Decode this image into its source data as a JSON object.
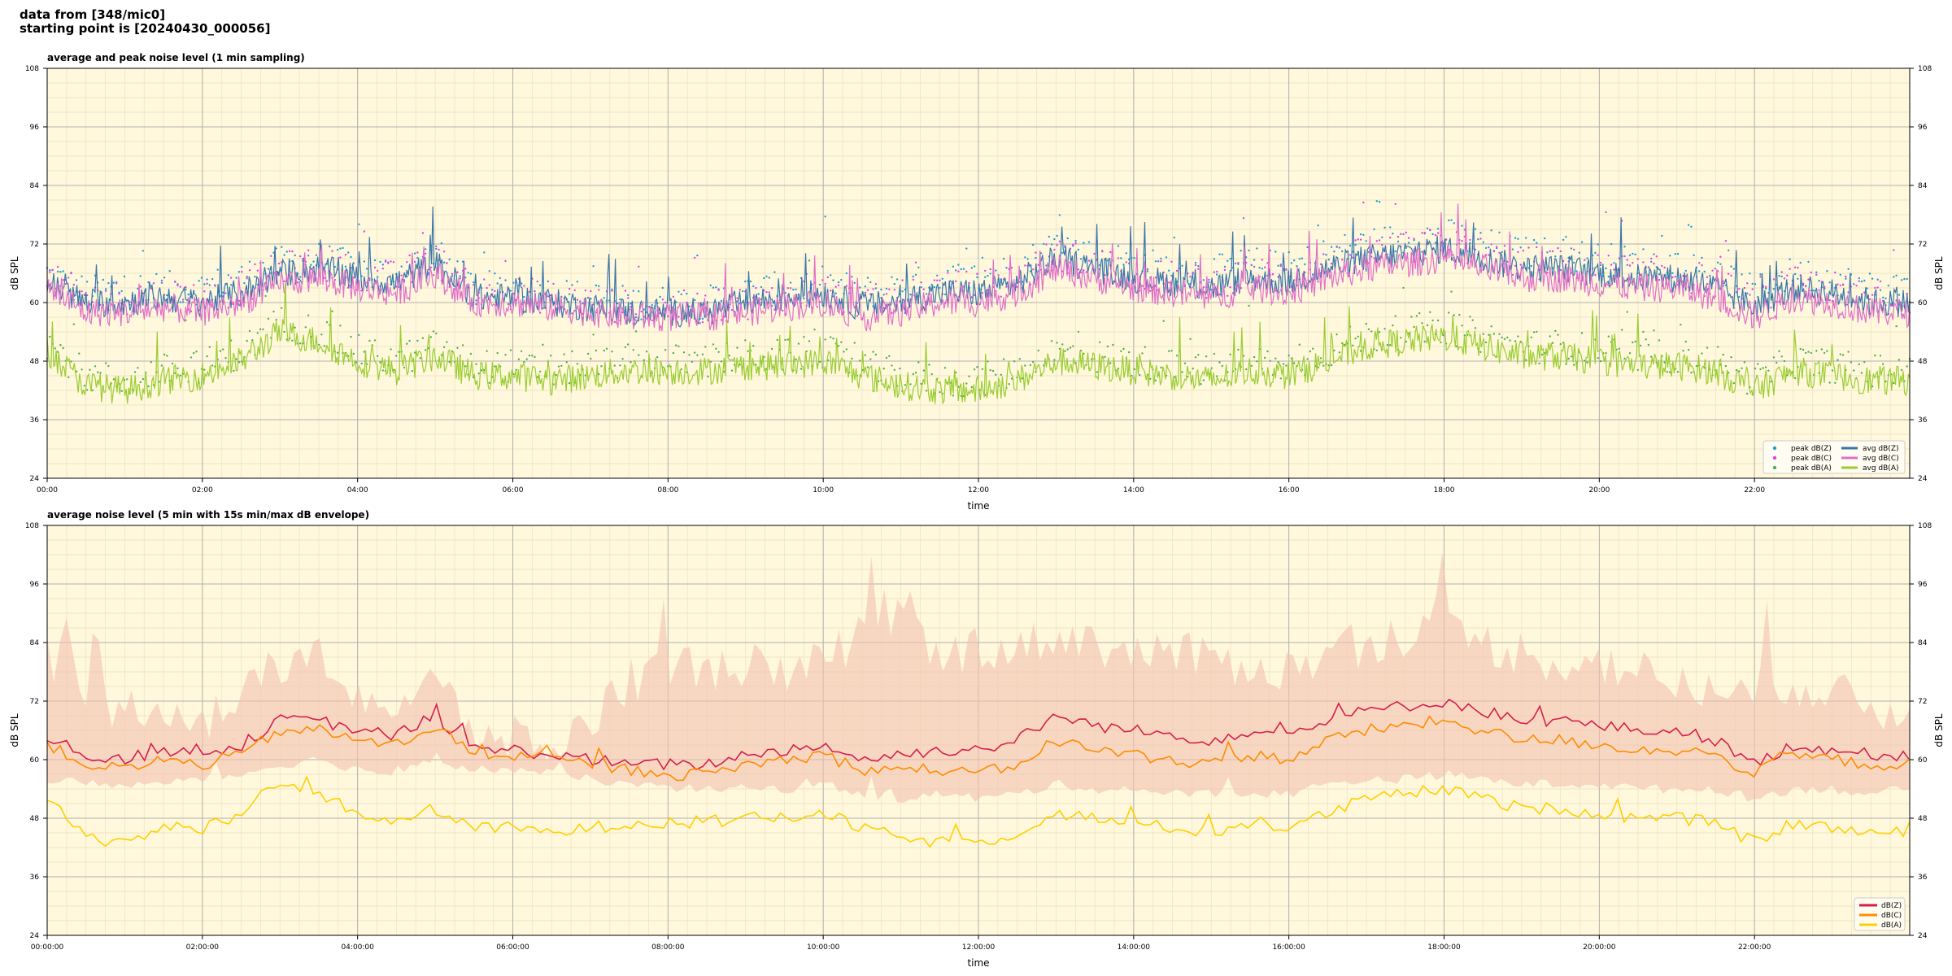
{
  "header": {
    "line1": "data from [348/mic0]",
    "line2": "starting point is [20240430_000056]"
  },
  "chart_data": [
    {
      "type": "scatter+line",
      "title": "average and peak noise level (1 min sampling)",
      "xlabel": "time",
      "ylabel": "dB SPL",
      "ylim": [
        24,
        108
      ],
      "xlim_hours": [
        0,
        24
      ],
      "xticks": [
        "00:00",
        "02:00",
        "04:00",
        "06:00",
        "08:00",
        "10:00",
        "12:00",
        "14:00",
        "16:00",
        "18:00",
        "20:00",
        "22:00"
      ],
      "yticks": [
        24,
        36,
        48,
        60,
        72,
        84,
        96,
        108
      ],
      "grid": true,
      "legend_position": "bottom-right",
      "legend_columns": 2,
      "series_keypoints_x_hours": [
        0,
        0.5,
        1,
        1.5,
        2,
        2.5,
        3,
        3.5,
        4,
        4.5,
        5,
        5.5,
        6,
        6.5,
        7,
        7.5,
        8,
        8.5,
        9,
        9.5,
        10,
        10.5,
        11,
        11.5,
        12,
        12.5,
        13,
        13.5,
        14,
        14.5,
        15,
        15.5,
        16,
        16.5,
        17,
        17.5,
        18,
        18.5,
        19,
        19.5,
        20,
        20.5,
        21,
        21.5,
        22,
        22.5,
        23,
        23.5,
        24
      ],
      "series": [
        {
          "name": "peak dB(Z)",
          "kind": "points",
          "color": "#1f9bd6",
          "values": [
            66,
            62,
            63,
            63,
            63,
            65,
            68,
            69,
            67,
            66,
            70,
            63,
            63,
            62,
            61,
            60,
            60,
            60,
            62,
            63,
            64,
            62,
            63,
            65,
            65,
            67,
            72,
            70,
            68,
            67,
            66,
            68,
            67,
            70,
            72,
            73,
            74,
            72,
            70,
            70,
            69,
            68,
            68,
            66,
            62,
            66,
            65,
            63,
            63
          ]
        },
        {
          "name": "peak dB(C)",
          "kind": "points",
          "color": "#e83ce8",
          "values": [
            65,
            61,
            61,
            62,
            61,
            63,
            67,
            68,
            66,
            65,
            69,
            62,
            62,
            61,
            60,
            59,
            59,
            59,
            60,
            61,
            62,
            60,
            61,
            63,
            63,
            65,
            70,
            68,
            66,
            65,
            64,
            66,
            65,
            68,
            70,
            71,
            72,
            70,
            68,
            68,
            67,
            66,
            66,
            64,
            60,
            64,
            63,
            61,
            61
          ]
        },
        {
          "name": "peak dB(A)",
          "kind": "points",
          "color": "#4caf50",
          "values": [
            52,
            45,
            44,
            46,
            47,
            50,
            56,
            54,
            50,
            48,
            51,
            47,
            47,
            46,
            47,
            48,
            48,
            48,
            49,
            49,
            50,
            47,
            45,
            44,
            44,
            46,
            50,
            49,
            48,
            47,
            46,
            48,
            47,
            50,
            53,
            54,
            55,
            53,
            51,
            51,
            50,
            49,
            49,
            48,
            44,
            48,
            47,
            46,
            46
          ]
        },
        {
          "name": "avg dB(Z)",
          "kind": "line",
          "color": "#3a75a8",
          "values": [
            64,
            60,
            60,
            61,
            60,
            62,
            66,
            67,
            65,
            64,
            68,
            61,
            61,
            60,
            59,
            58,
            58,
            58,
            60,
            61,
            62,
            59,
            60,
            62,
            62,
            64,
            69,
            67,
            65,
            64,
            63,
            65,
            64,
            67,
            69,
            70,
            71,
            69,
            67,
            67,
            66,
            65,
            65,
            63,
            59,
            63,
            62,
            60,
            60
          ]
        },
        {
          "name": "avg dB(C)",
          "kind": "line",
          "color": "#e070c8",
          "values": [
            63,
            58,
            58,
            59,
            58,
            60,
            64,
            65,
            63,
            62,
            66,
            60,
            60,
            59,
            58,
            57,
            57,
            57,
            58,
            59,
            60,
            57,
            58,
            60,
            60,
            62,
            67,
            65,
            63,
            62,
            61,
            63,
            62,
            65,
            67,
            68,
            69,
            67,
            65,
            65,
            64,
            63,
            63,
            61,
            57,
            61,
            60,
            58,
            58
          ]
        },
        {
          "name": "avg dB(A)",
          "kind": "line",
          "color": "#9acd32",
          "values": [
            50,
            43,
            42,
            44,
            45,
            48,
            54,
            52,
            48,
            46,
            49,
            45,
            45,
            44,
            45,
            46,
            46,
            46,
            47,
            47,
            48,
            45,
            43,
            42,
            42,
            44,
            48,
            47,
            46,
            45,
            44,
            46,
            45,
            48,
            51,
            52,
            53,
            51,
            49,
            49,
            48,
            47,
            47,
            46,
            42,
            46,
            45,
            44,
            44
          ]
        }
      ]
    },
    {
      "type": "line+band",
      "title": "average noise level (5 min with 15s min/max dB envelope)",
      "xlabel": "time",
      "ylabel": "dB SPL",
      "ylim": [
        24,
        108
      ],
      "xlim_hours": [
        0,
        24
      ],
      "xticks": [
        "00:00:00",
        "02:00:00",
        "04:00:00",
        "06:00:00",
        "08:00:00",
        "10:00:00",
        "12:00:00",
        "14:00:00",
        "16:00:00",
        "18:00:00",
        "20:00:00",
        "22:00:00"
      ],
      "yticks": [
        24,
        36,
        48,
        60,
        72,
        84,
        96,
        108
      ],
      "grid": true,
      "legend_position": "bottom-right",
      "legend_columns": 1,
      "envelope_color": "#f4c2b0",
      "series_keypoints_x_hours": [
        0,
        0.5,
        1,
        1.5,
        2,
        2.5,
        3,
        3.5,
        4,
        4.5,
        5,
        5.5,
        6,
        6.5,
        7,
        7.5,
        8,
        8.5,
        9,
        9.5,
        10,
        10.5,
        11,
        11.5,
        12,
        12.5,
        13,
        13.5,
        14,
        14.5,
        15,
        15.5,
        16,
        16.5,
        17,
        17.5,
        18,
        18.5,
        19,
        19.5,
        20,
        20.5,
        21,
        21.5,
        22,
        22.5,
        23,
        23.5,
        24
      ],
      "envelope": {
        "low": [
          56,
          55,
          55,
          55,
          56,
          57,
          59,
          60,
          58,
          57,
          60,
          58,
          58,
          57,
          56,
          55,
          54,
          54,
          54,
          54,
          55,
          53,
          52,
          53,
          52,
          53,
          55,
          54,
          54,
          53,
          53,
          53,
          53,
          55,
          56,
          56,
          57,
          56,
          55,
          55,
          55,
          54,
          54,
          54,
          52,
          54,
          54,
          53,
          54
        ],
        "high": [
          82,
          74,
          70,
          72,
          68,
          72,
          80,
          80,
          74,
          70,
          76,
          66,
          64,
          62,
          68,
          76,
          80,
          78,
          80,
          76,
          80,
          86,
          90,
          80,
          84,
          82,
          86,
          84,
          82,
          82,
          80,
          80,
          78,
          82,
          84,
          86,
          86,
          84,
          82,
          80,
          80,
          78,
          76,
          72,
          74,
          76,
          74,
          70,
          70
        ]
      },
      "series": [
        {
          "name": "dB(Z)",
          "color": "#d61f4a",
          "values": [
            65,
            61,
            60,
            62,
            61,
            63,
            68,
            68,
            66,
            65,
            69,
            62,
            62,
            61,
            60,
            59,
            59,
            59,
            61,
            62,
            63,
            60,
            61,
            62,
            62,
            64,
            69,
            67,
            66,
            65,
            64,
            66,
            65,
            68,
            70,
            71,
            72,
            70,
            68,
            68,
            67,
            66,
            66,
            64,
            59,
            63,
            62,
            61,
            61
          ]
        },
        {
          "name": "dB(C)",
          "color": "#ff8c00",
          "values": [
            63,
            59,
            58,
            60,
            59,
            61,
            66,
            66,
            64,
            63,
            67,
            61,
            61,
            60,
            59,
            58,
            57,
            57,
            59,
            60,
            61,
            58,
            58,
            58,
            57,
            59,
            64,
            62,
            61,
            60,
            59,
            61,
            60,
            64,
            66,
            67,
            68,
            66,
            64,
            64,
            63,
            62,
            62,
            61,
            57,
            61,
            60,
            59,
            59
          ]
        },
        {
          "name": "dB(A)",
          "color": "#ffd000",
          "values": [
            52,
            44,
            43,
            46,
            46,
            49,
            55,
            53,
            49,
            47,
            50,
            46,
            46,
            45,
            46,
            47,
            47,
            47,
            48,
            48,
            49,
            46,
            44,
            43,
            43,
            45,
            49,
            48,
            47,
            46,
            45,
            47,
            46,
            49,
            52,
            53,
            54,
            52,
            50,
            50,
            49,
            48,
            48,
            47,
            43,
            47,
            46,
            45,
            45
          ]
        }
      ]
    }
  ]
}
